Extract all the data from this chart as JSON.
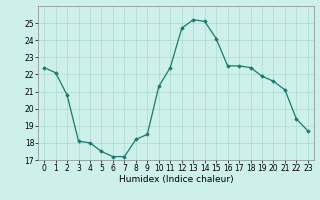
{
  "x": [
    0,
    1,
    2,
    3,
    4,
    5,
    6,
    7,
    8,
    9,
    10,
    11,
    12,
    13,
    14,
    15,
    16,
    17,
    18,
    19,
    20,
    21,
    22,
    23
  ],
  "y": [
    22.4,
    22.1,
    20.8,
    18.1,
    18.0,
    17.5,
    17.2,
    17.2,
    18.2,
    18.5,
    21.3,
    22.4,
    24.7,
    25.2,
    25.1,
    24.1,
    22.5,
    22.5,
    22.4,
    21.9,
    21.6,
    21.1,
    19.4,
    18.7
  ],
  "xlabel": "Humidex (Indice chaleur)",
  "bg_color": "#cef0eb",
  "line_color": "#1a7a6e",
  "marker_color": "#1a7a6e",
  "grid_color": "#b0d8d4",
  "ylim": [
    17,
    26
  ],
  "xlim": [
    -0.5,
    23.5
  ],
  "yticks": [
    17,
    18,
    19,
    20,
    21,
    22,
    23,
    24,
    25
  ],
  "xticks": [
    0,
    1,
    2,
    3,
    4,
    5,
    6,
    7,
    8,
    9,
    10,
    11,
    12,
    13,
    14,
    15,
    16,
    17,
    18,
    19,
    20,
    21,
    22,
    23
  ]
}
